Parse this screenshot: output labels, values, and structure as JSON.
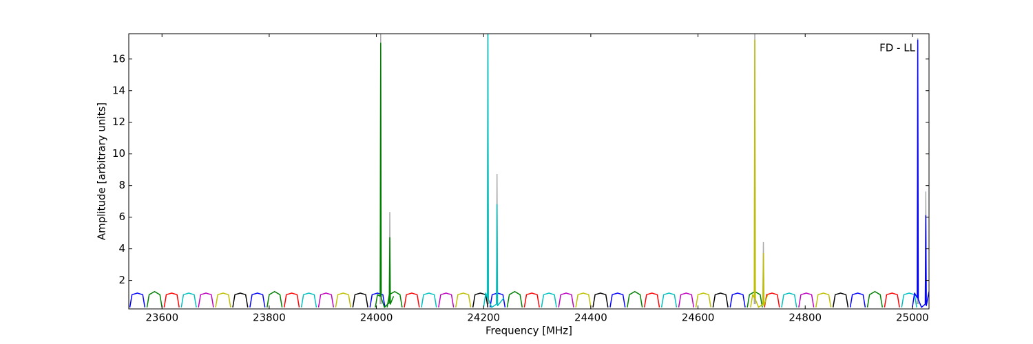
{
  "chart_data": {
    "type": "line",
    "xlabel": "Frequency [MHz]",
    "ylabel": "Amplitude [arbitrary units]",
    "annotation": "FD - LL",
    "xlim": [
      23538,
      25031
    ],
    "ylim": [
      0.2,
      17.6
    ],
    "xticks": [
      23600,
      23800,
      24000,
      24200,
      24400,
      24600,
      24800,
      25000
    ],
    "yticks": [
      2,
      4,
      6,
      8,
      10,
      12,
      14,
      16
    ],
    "grid": false,
    "series": [
      {
        "color": "#aaaaaa",
        "x": [
          24007,
          24008,
          24009,
          null,
          24024,
          24025,
          24026,
          null,
          24207,
          24208,
          24209,
          null,
          24224,
          24225,
          24226,
          null,
          24705,
          24706,
          24707,
          null,
          24721,
          24722,
          24723,
          null,
          25009,
          25010,
          25011,
          null,
          25024,
          25025,
          25026
        ],
        "values": [
          0.5,
          18,
          0.5,
          null,
          0.5,
          6.3,
          0.5,
          null,
          0.5,
          18,
          0.5,
          null,
          0.5,
          8.7,
          0.5,
          null,
          0.5,
          18,
          0.5,
          null,
          0.5,
          4.4,
          0.5,
          null,
          0.5,
          17.3,
          0.5,
          null,
          0.5,
          7.6,
          0.5
        ]
      },
      {
        "color": "#0000ff",
        "x": [
          23540,
          23544,
          23554,
          23564,
          23568,
          null,
          23764,
          23768,
          23778,
          23788,
          23792,
          null,
          23988,
          23992,
          24002,
          24012,
          24016,
          null,
          24212,
          24216,
          24226,
          24236,
          24240,
          null,
          24436,
          24440,
          24450,
          24460,
          24464,
          null,
          24660,
          24664,
          24674,
          24684,
          24688,
          null,
          24884,
          24888,
          24898,
          24908,
          24912
        ],
        "values": [
          0.3,
          1.1,
          1.2,
          1.1,
          0.3,
          null,
          0.3,
          1.1,
          1.2,
          1.1,
          0.3,
          null,
          0.3,
          1.1,
          1.2,
          1.1,
          0.3,
          null,
          0.3,
          1.1,
          1.2,
          1.1,
          0.3,
          null,
          0.3,
          1.1,
          1.2,
          1.1,
          0.3,
          null,
          0.3,
          1.1,
          1.2,
          1.1,
          0.3,
          null,
          0.3,
          1.1,
          1.2,
          1.1,
          0.3
        ]
      },
      {
        "color": "#008000",
        "x": [
          23572,
          23576,
          23586,
          23596,
          23600,
          null,
          23796,
          23800,
          23810,
          23820,
          23824,
          null,
          24020,
          24024,
          24034,
          24044,
          24048,
          null,
          24244,
          24248,
          24258,
          24268,
          24272,
          null,
          24468,
          24472,
          24482,
          24492,
          24496,
          null,
          24692,
          24696,
          24706,
          24716,
          24720,
          null,
          24916,
          24920,
          24930,
          24940,
          24944
        ],
        "values": [
          0.3,
          1.1,
          1.3,
          1.1,
          0.3,
          null,
          0.3,
          1.1,
          1.3,
          1.1,
          0.3,
          null,
          0.3,
          1.1,
          1.3,
          1.1,
          0.3,
          null,
          0.3,
          1.1,
          1.3,
          1.1,
          0.3,
          null,
          0.3,
          1.1,
          1.3,
          1.1,
          0.3,
          null,
          0.3,
          1.1,
          1.3,
          1.1,
          0.3,
          null,
          0.3,
          1.1,
          1.3,
          1.1,
          0.3
        ]
      },
      {
        "color": "#ff0000",
        "x": [
          23604,
          23608,
          23618,
          23628,
          23632,
          null,
          23828,
          23832,
          23842,
          23852,
          23856,
          null,
          24052,
          24056,
          24066,
          24076,
          24080,
          null,
          24276,
          24280,
          24290,
          24300,
          24304,
          null,
          24500,
          24504,
          24514,
          24524,
          24528,
          null,
          24724,
          24728,
          24738,
          24748,
          24752,
          null,
          24948,
          24952,
          24962,
          24972,
          24976
        ],
        "values": [
          0.3,
          1.1,
          1.2,
          1.1,
          0.3,
          null,
          0.3,
          1.1,
          1.2,
          1.1,
          0.3,
          null,
          0.3,
          1.1,
          1.2,
          1.1,
          0.3,
          null,
          0.3,
          1.1,
          1.2,
          1.1,
          0.3,
          null,
          0.3,
          1.1,
          1.2,
          1.1,
          0.3,
          null,
          0.3,
          1.1,
          1.2,
          1.1,
          0.3,
          null,
          0.3,
          1.1,
          1.2,
          1.1,
          0.3
        ]
      },
      {
        "color": "#00bfbf",
        "x": [
          23636,
          23640,
          23650,
          23660,
          23664,
          null,
          23860,
          23864,
          23874,
          23884,
          23888,
          null,
          24084,
          24088,
          24098,
          24108,
          24112,
          null,
          24308,
          24312,
          24322,
          24332,
          24336,
          null,
          24532,
          24536,
          24546,
          24556,
          24560,
          null,
          24756,
          24760,
          24770,
          24780,
          24784,
          null,
          24980,
          24984,
          24994,
          25004,
          25008
        ],
        "values": [
          0.3,
          1.1,
          1.2,
          1.1,
          0.3,
          null,
          0.3,
          1.1,
          1.2,
          1.1,
          0.3,
          null,
          0.3,
          1.1,
          1.2,
          1.1,
          0.3,
          null,
          0.3,
          1.1,
          1.2,
          1.1,
          0.3,
          null,
          0.3,
          1.1,
          1.2,
          1.1,
          0.3,
          null,
          0.3,
          1.1,
          1.2,
          1.1,
          0.3,
          null,
          0.3,
          1.1,
          1.2,
          1.1,
          0.3
        ]
      },
      {
        "color": "#bf00bf",
        "x": [
          23668,
          23672,
          23682,
          23692,
          23696,
          null,
          23892,
          23896,
          23906,
          23916,
          23920,
          null,
          24116,
          24120,
          24130,
          24140,
          24144,
          null,
          24340,
          24344,
          24354,
          24364,
          24368,
          null,
          24564,
          24568,
          24578,
          24588,
          24592,
          null,
          24788,
          24792,
          24802,
          24812,
          24816
        ],
        "values": [
          0.3,
          1.1,
          1.2,
          1.1,
          0.3,
          null,
          0.3,
          1.1,
          1.2,
          1.1,
          0.3,
          null,
          0.3,
          1.1,
          1.2,
          1.1,
          0.3,
          null,
          0.3,
          1.1,
          1.2,
          1.1,
          0.3,
          null,
          0.3,
          1.1,
          1.2,
          1.1,
          0.3,
          null,
          0.3,
          1.1,
          1.2,
          1.1,
          0.3
        ]
      },
      {
        "color": "#bfbf00",
        "x": [
          23700,
          23704,
          23714,
          23724,
          23728,
          null,
          23924,
          23928,
          23938,
          23948,
          23952,
          null,
          24148,
          24152,
          24162,
          24172,
          24176,
          null,
          24372,
          24376,
          24386,
          24396,
          24400,
          null,
          24596,
          24600,
          24610,
          24620,
          24624,
          null,
          24820,
          24824,
          24834,
          24844,
          24848
        ],
        "values": [
          0.3,
          1.1,
          1.2,
          1.1,
          0.3,
          null,
          0.3,
          1.1,
          1.2,
          1.1,
          0.3,
          null,
          0.3,
          1.1,
          1.2,
          1.1,
          0.3,
          null,
          0.3,
          1.1,
          1.2,
          1.1,
          0.3,
          null,
          0.3,
          1.1,
          1.2,
          1.1,
          0.3,
          null,
          0.3,
          1.1,
          1.2,
          1.1,
          0.3
        ]
      },
      {
        "color": "#000000",
        "x": [
          23732,
          23736,
          23746,
          23756,
          23760,
          null,
          23956,
          23960,
          23970,
          23980,
          23984,
          null,
          24180,
          24184,
          24194,
          24204,
          24208,
          null,
          24404,
          24408,
          24418,
          24428,
          24432,
          null,
          24628,
          24632,
          24642,
          24652,
          24656,
          null,
          24852,
          24856,
          24866,
          24876,
          24880
        ],
        "values": [
          0.3,
          1.1,
          1.2,
          1.1,
          0.3,
          null,
          0.3,
          1.1,
          1.2,
          1.1,
          0.3,
          null,
          0.3,
          1.1,
          1.2,
          1.1,
          0.3,
          null,
          0.3,
          1.1,
          1.2,
          1.1,
          0.3,
          null,
          0.3,
          1.1,
          1.2,
          1.1,
          0.3,
          null,
          0.3,
          1.1,
          1.2,
          1.1,
          0.3
        ]
      },
      {
        "color": "#008000",
        "x": [
          23998,
          24002,
          24007,
          24008,
          24009,
          24015,
          24024,
          24025,
          24026,
          24032
        ],
        "values": [
          0.3,
          1.1,
          1.0,
          17.0,
          0.9,
          0.3,
          0.6,
          4.7,
          0.5,
          1.0
        ]
      },
      {
        "color": "#00bfbf",
        "x": [
          24200,
          24204,
          24207,
          24208,
          24209,
          24215,
          24224,
          24225,
          24226,
          24238
        ],
        "values": [
          0.3,
          1.2,
          0.9,
          18,
          0.8,
          0.3,
          0.5,
          6.8,
          0.4,
          0.9
        ]
      },
      {
        "color": "#bfbf00",
        "x": [
          24698,
          24702,
          24705,
          24706,
          24707,
          24713,
          24721,
          24722,
          24723,
          24730
        ],
        "values": [
          0.3,
          1.1,
          0.9,
          17.2,
          0.8,
          0.3,
          0.5,
          3.7,
          0.4,
          1.1
        ]
      },
      {
        "color": "#0000ff",
        "x": [
          25000,
          25004,
          25009,
          25010,
          25011,
          25017,
          25024,
          25025,
          25026,
          25031
        ],
        "values": [
          0.3,
          1.2,
          0.9,
          17.2,
          0.8,
          0.3,
          0.5,
          6.1,
          0.4,
          1.3
        ]
      }
    ]
  }
}
